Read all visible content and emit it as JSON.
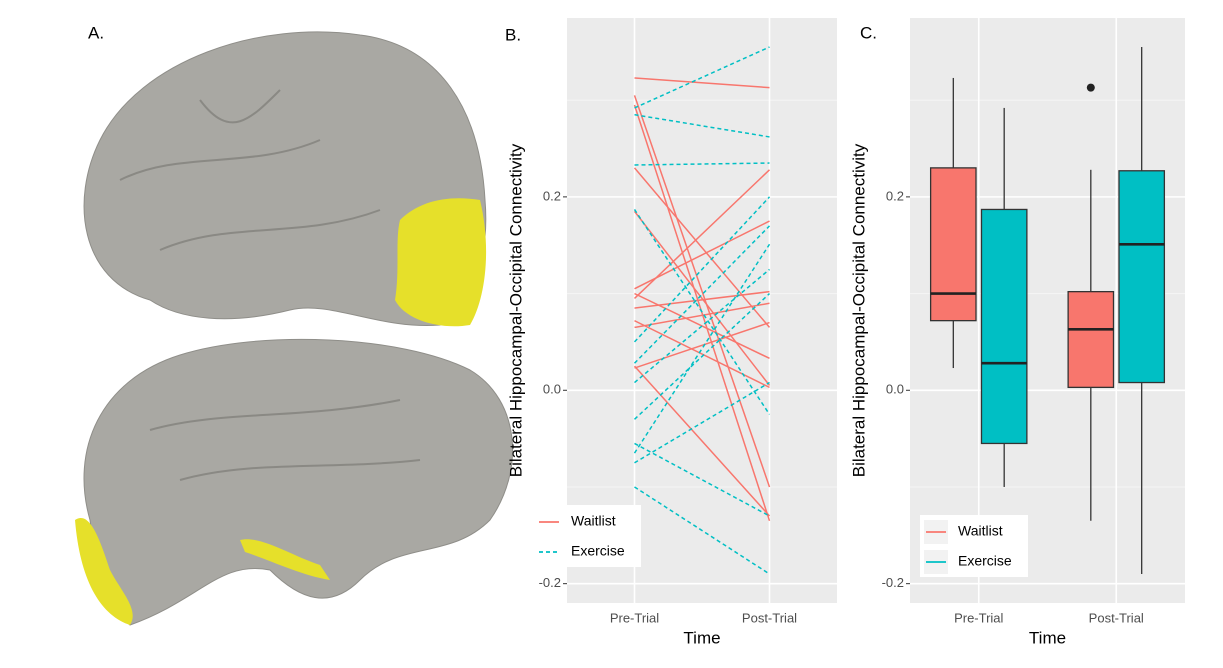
{
  "panels": [
    "A.",
    "B.",
    "C."
  ],
  "chart_data": [
    {
      "type": "line",
      "xlabel": "Time",
      "ylabel": "Bilateral Hippocampal-Occipital Connectivity",
      "categories": [
        "Pre-Trial",
        "Post-Trial"
      ],
      "ylim": [
        -0.22,
        0.385
      ],
      "yticks": [
        -0.2,
        {
          "value": 0,
          "label": "0.0"
        },
        0.2
      ],
      "minor_yticks": [
        -0.1,
        0.1,
        0.3
      ],
      "grid": true,
      "legend": "lower left",
      "series": [
        {
          "name": "Waitlist",
          "color": "#f8766d",
          "dash": false,
          "values": [
            [
              0.323,
              0.313
            ],
            [
              0.305,
              -0.1
            ],
            [
              0.295,
              -0.135
            ],
            [
              0.23,
              0.065
            ],
            [
              0.185,
              0.005
            ],
            [
              0.105,
              0.175
            ],
            [
              0.1,
              0.033
            ],
            [
              0.095,
              0.228
            ],
            [
              0.085,
              0.102
            ],
            [
              0.072,
              0.003
            ],
            [
              0.065,
              0.09
            ],
            [
              0.025,
              -0.13
            ],
            [
              0.023,
              0.07
            ]
          ]
        },
        {
          "name": "Exercise",
          "color": "#00bfc4",
          "dash": true,
          "values": [
            [
              0.292,
              0.355
            ],
            [
              0.285,
              0.262
            ],
            [
              0.233,
              0.235
            ],
            [
              0.187,
              -0.025
            ],
            [
              0.05,
              0.2
            ],
            [
              0.028,
              0.17
            ],
            [
              0.008,
              0.125
            ],
            [
              -0.03,
              0.1
            ],
            [
              -0.055,
              -0.13
            ],
            [
              -0.065,
              0.151
            ],
            [
              -0.075,
              0.008
            ],
            [
              -0.1,
              -0.19
            ]
          ]
        }
      ]
    },
    {
      "type": "box",
      "xlabel": "Time",
      "ylabel": "Bilateral Hippocampal-Occipital Connectivity",
      "categories": [
        "Pre-Trial",
        "Post-Trial"
      ],
      "ylim": [
        -0.22,
        0.385
      ],
      "yticks": [
        -0.2,
        {
          "value": 0,
          "label": "0.0"
        },
        0.2
      ],
      "minor_yticks": [
        -0.1,
        0.1,
        0.3
      ],
      "grid": true,
      "legend": "lower left",
      "series": [
        {
          "name": "Waitlist",
          "color": "#f8766d",
          "values": [
            {
              "min": 0.023,
              "q1": 0.072,
              "median": 0.1,
              "q3": 0.23,
              "max": 0.323,
              "outliers": []
            },
            {
              "min": -0.135,
              "q1": 0.003,
              "median": 0.063,
              "q3": 0.102,
              "max": 0.228,
              "outliers": [
                0.313
              ]
            }
          ]
        },
        {
          "name": "Exercise",
          "color": "#00bfc4",
          "values": [
            {
              "min": -0.1,
              "q1": -0.055,
              "median": 0.028,
              "q3": 0.187,
              "max": 0.292,
              "outliers": []
            },
            {
              "min": -0.19,
              "q1": 0.008,
              "median": 0.151,
              "q3": 0.227,
              "max": 0.355,
              "outliers": []
            }
          ]
        }
      ]
    }
  ]
}
